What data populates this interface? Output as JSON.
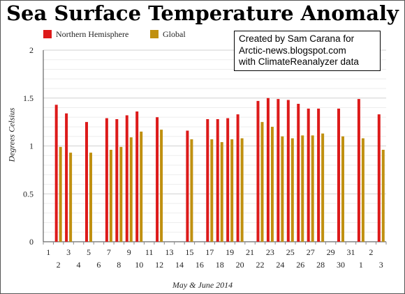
{
  "chart_data": {
    "type": "bar",
    "title": "Sea Surface Temperature Anomaly",
    "xlabel": "May & June 2014",
    "ylabel": "Degrees Celsius",
    "ylim": [
      0,
      2
    ],
    "yticks": [
      "0",
      "0.5",
      "1",
      "1.5",
      "2"
    ],
    "grid": true,
    "legend_position": "top-left",
    "categories": [
      "1",
      "2",
      "3",
      "4",
      "5",
      "6",
      "7",
      "8",
      "9",
      "10",
      "11",
      "12",
      "13",
      "14",
      "15",
      "16",
      "17",
      "18",
      "19",
      "20",
      "21",
      "22",
      "23",
      "24",
      "25",
      "26",
      "27",
      "28",
      "29",
      "30",
      "31",
      "1",
      "2",
      "3"
    ],
    "series": [
      {
        "name": "Northern Hemisphere",
        "color": "#dd1a1a",
        "values": [
          null,
          1.43,
          1.34,
          null,
          1.25,
          null,
          1.29,
          1.28,
          1.32,
          1.36,
          null,
          1.3,
          null,
          null,
          1.16,
          null,
          1.28,
          1.28,
          1.29,
          1.33,
          null,
          1.47,
          1.5,
          1.49,
          1.48,
          1.44,
          1.39,
          1.39,
          null,
          1.39,
          null,
          1.49,
          null,
          1.33
        ]
      },
      {
        "name": "Global",
        "color": "#c09010",
        "values": [
          null,
          0.99,
          0.93,
          null,
          0.93,
          null,
          0.96,
          0.99,
          1.09,
          1.15,
          null,
          1.17,
          null,
          null,
          1.07,
          null,
          1.07,
          1.04,
          1.07,
          1.08,
          null,
          1.25,
          1.2,
          1.1,
          1.08,
          1.11,
          1.11,
          1.13,
          null,
          1.1,
          null,
          1.08,
          null,
          0.96
        ]
      }
    ]
  },
  "credit": {
    "line1": "Created by Sam Carana for",
    "line2": "Arctic-news.blogspot.com",
    "line3": "with ClimateReanalyzer data"
  }
}
